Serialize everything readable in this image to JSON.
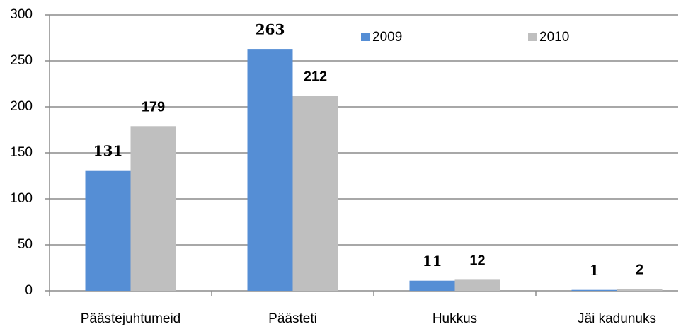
{
  "chart_data": {
    "type": "bar",
    "categories": [
      "Päästejuhtumeid",
      "Päästeti",
      "Hukkus",
      "Jäi kadunuks"
    ],
    "series": [
      {
        "name": "2009",
        "color": "#558ed5",
        "values": [
          131,
          263,
          11,
          1
        ]
      },
      {
        "name": "2010",
        "color": "#bfbfbf",
        "values": [
          179,
          212,
          12,
          2
        ]
      }
    ],
    "ylim": [
      0,
      300
    ],
    "yticks": [
      0,
      50,
      100,
      150,
      200,
      250,
      300
    ],
    "grid": true,
    "legend": "top"
  }
}
